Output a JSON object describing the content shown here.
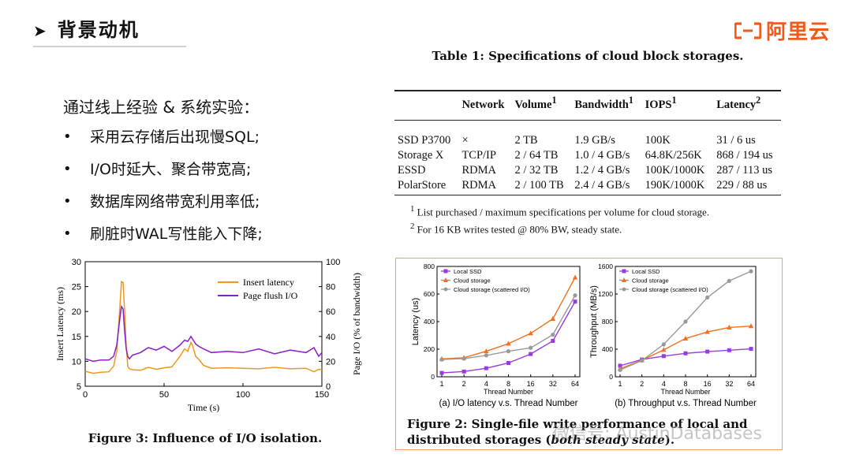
{
  "header": {
    "title": "背景动机",
    "logo_text": "阿里云",
    "brand_color": "#f25a1c"
  },
  "intro": "通过线上经验 & 系统实验：",
  "bullets": [
    "采用云存储后出现慢SQL;",
    "I/O时延大、聚合带宽高;",
    "数据库网络带宽利用率低;",
    "刷脏时WAL写性能入下降;"
  ],
  "table": {
    "caption": "Table 1: Specifications of cloud block storages.",
    "headers": [
      "",
      "Network",
      "Volume",
      "Bandwidth",
      "IOPS",
      "Latency"
    ],
    "header_sups": [
      "",
      "",
      "1",
      "1",
      "1",
      "2"
    ],
    "rows": [
      [
        "SSD P3700",
        "×",
        "2 TB",
        "1.9 GB/s",
        "100K",
        "31 / 6 us"
      ],
      [
        "Storage X",
        "TCP/IP",
        "2 / 64 TB",
        "1.0 / 4 GB/s",
        "64.8K/256K",
        "868 / 194 us"
      ],
      [
        "ESSD",
        "RDMA",
        "2 / 32 TB",
        "1.2 / 4 GB/s",
        "100K/1000K",
        "287 / 113 us"
      ],
      [
        "PolarStore",
        "RDMA",
        "2 / 100 TB",
        "2.4 / 4 GB/s",
        "190K/1000K",
        "229 / 88 us"
      ]
    ],
    "footnotes": [
      {
        "mark": "1",
        "text": "List purchased / maximum specifications per volume for cloud storage."
      },
      {
        "mark": "2",
        "text": "For 16 KB writes tested @ 80% BW, steady state."
      }
    ]
  },
  "figure3": {
    "caption": "Figure 3: Influence of I/O isolation."
  },
  "figure2": {
    "caption_bold": "Figure 2: Single-file write performance of local and distributed storages (",
    "caption_italic": "both steady state",
    "caption_end": ")."
  },
  "watermark": "微信号: AustinDatabases",
  "chart_data": [
    {
      "type": "line",
      "title": "",
      "xlabel": "Time (s)",
      "ylabel": "Insert Latency (ms)",
      "ylabel_right": "Page I/O (% of bandwidth)",
      "xlim": [
        0,
        150
      ],
      "ylim": [
        5,
        30
      ],
      "ylim_right": [
        0,
        100
      ],
      "x_ticks": [
        "0",
        "50",
        "100",
        "150"
      ],
      "y_ticks": [
        "5",
        "10",
        "15",
        "20",
        "25",
        "30"
      ],
      "y_ticks_right": [
        "0",
        "20",
        "40",
        "60",
        "80",
        "100"
      ],
      "series": [
        {
          "name": "Insert latency",
          "color": "#f0961e",
          "axis": "left",
          "x": [
            0,
            5,
            10,
            15,
            18,
            20,
            22,
            23,
            24,
            25,
            26,
            27,
            28,
            30,
            35,
            40,
            45,
            50,
            55,
            60,
            63,
            65,
            67,
            68,
            70,
            72,
            75,
            80,
            90,
            100,
            110,
            120,
            130,
            140,
            145,
            148,
            150
          ],
          "values": [
            8,
            7.6,
            7.8,
            7.9,
            9,
            12,
            21,
            26,
            25.8,
            20,
            13,
            9,
            8.5,
            8.3,
            8.2,
            8.8,
            8.4,
            8.7,
            8.9,
            11,
            12.5,
            12,
            13.8,
            13.2,
            11,
            10.4,
            9.2,
            8.6,
            8.7,
            8.6,
            8.5,
            8.8,
            8.5,
            8.6,
            7.9,
            8.4,
            8.3
          ]
        },
        {
          "name": "Page flush I/O",
          "color": "#8a1ec8",
          "axis": "right",
          "x": [
            0,
            5,
            10,
            15,
            18,
            20,
            22,
            23,
            24,
            25,
            26,
            27,
            28,
            30,
            35,
            40,
            45,
            50,
            55,
            60,
            63,
            65,
            67,
            68,
            70,
            72,
            75,
            80,
            90,
            100,
            110,
            120,
            130,
            140,
            145,
            148,
            150
          ],
          "values": [
            22,
            20,
            21,
            21,
            24,
            33,
            55,
            64,
            62,
            44,
            30,
            24,
            22,
            25,
            27,
            31,
            29,
            32,
            28,
            33,
            37,
            36,
            40,
            38,
            34,
            32,
            30,
            27,
            28,
            27,
            30,
            26,
            29,
            27,
            31,
            24,
            27
          ]
        }
      ]
    },
    {
      "type": "line",
      "title": "(a) I/O latency v.s. Thread Number",
      "xlabel": "Thread Number",
      "ylabel": "Latency (us)",
      "categories": [
        "1",
        "2",
        "4",
        "8",
        "16",
        "32",
        "64"
      ],
      "ylim": [
        0,
        800
      ],
      "y_ticks": [
        "0",
        "200",
        "400",
        "600",
        "800"
      ],
      "series": [
        {
          "name": "Local SSD",
          "color": "#9a3be0",
          "marker": "square",
          "values": [
            28,
            38,
            62,
            100,
            165,
            260,
            545
          ]
        },
        {
          "name": "Cloud storage",
          "color": "#f07020",
          "marker": "triangle",
          "values": [
            130,
            138,
            185,
            240,
            315,
            420,
            720
          ]
        },
        {
          "name": "Cloud storage (scattered I/O)",
          "color": "#999999",
          "marker": "circle",
          "values": [
            125,
            132,
            155,
            185,
            210,
            305,
            590
          ]
        }
      ]
    },
    {
      "type": "line",
      "title": "(b) Throughput v.s. Thread Number",
      "xlabel": "Thread Number",
      "ylabel": "Throughput (MB/s)",
      "categories": [
        "1",
        "2",
        "4",
        "8",
        "16",
        "32",
        "64"
      ],
      "ylim": [
        0,
        1600
      ],
      "y_ticks": [
        "0",
        "400",
        "800",
        "1200",
        "1600"
      ],
      "series": [
        {
          "name": "Local SSD",
          "color": "#9a3be0",
          "marker": "square",
          "values": [
            160,
            250,
            300,
            340,
            365,
            385,
            405
          ]
        },
        {
          "name": "Cloud storage",
          "color": "#f07020",
          "marker": "triangle",
          "values": [
            115,
            240,
            390,
            555,
            650,
            715,
            735
          ]
        },
        {
          "name": "Cloud storage (scattered I/O)",
          "color": "#999999",
          "marker": "circle",
          "values": [
            100,
            235,
            470,
            800,
            1150,
            1390,
            1530
          ]
        }
      ]
    }
  ]
}
